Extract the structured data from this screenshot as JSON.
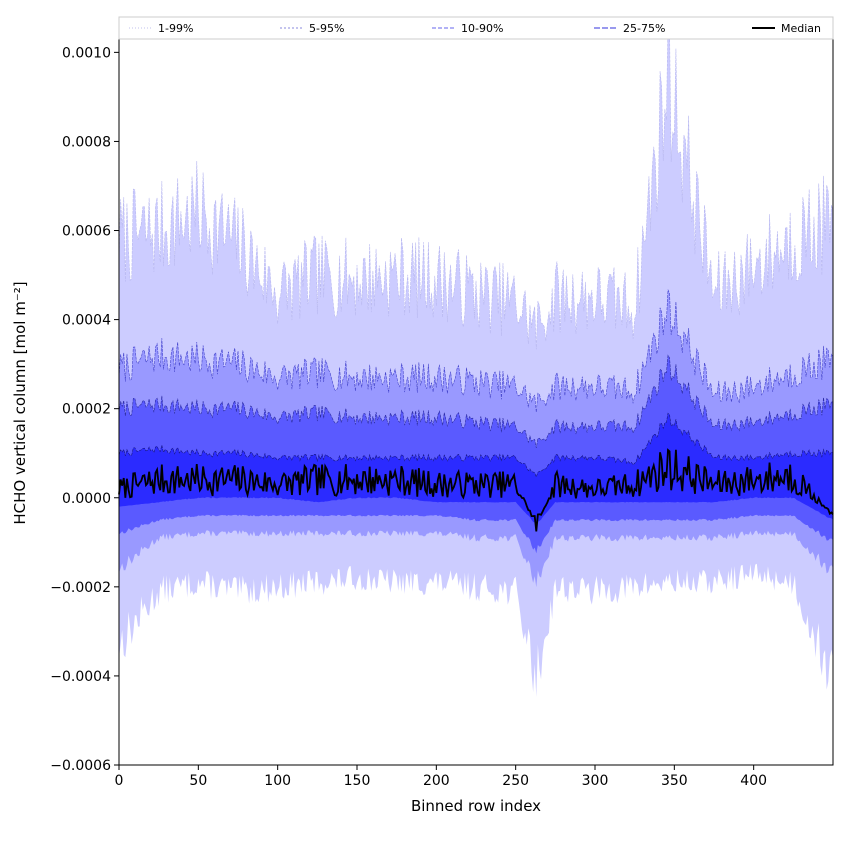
{
  "chart_data": {
    "type": "area",
    "title": "",
    "xlabel": "Binned row index",
    "ylabel": "HCHO vertical column [mol m⁻²]",
    "xlim": [
      0,
      450
    ],
    "ylim": [
      -0.0006,
      0.00103
    ],
    "x_ticks": [
      0,
      50,
      100,
      150,
      200,
      250,
      300,
      350,
      400
    ],
    "x_tick_labels": [
      "0",
      "50",
      "100",
      "150",
      "200",
      "250",
      "300",
      "350",
      "400"
    ],
    "y_ticks": [
      -0.0006,
      -0.0004,
      -0.0002,
      0,
      0.0002,
      0.0004,
      0.0006,
      0.0008,
      0.001
    ],
    "y_tick_labels": [
      "−0.0006",
      "−0.0004",
      "−0.0002",
      "0.0000",
      "0.0002",
      "0.0004",
      "0.0006",
      "0.0008",
      "0.0010"
    ],
    "grid": false,
    "legend_position": "top, above plot",
    "x": [
      0,
      25,
      50,
      75,
      100,
      125,
      150,
      175,
      200,
      225,
      250,
      263,
      275,
      300,
      325,
      346,
      375,
      400,
      425,
      450
    ],
    "bands": [
      {
        "name": "1-99%",
        "color": "#ccccff",
        "line_color": "#b8b8f0",
        "lower": [
          -0.00033,
          -0.00021,
          -0.00019,
          -0.00021,
          -0.0002,
          -0.00019,
          -0.00018,
          -0.00019,
          -0.00019,
          -0.0002,
          -0.00021,
          -0.00041,
          -0.0002,
          -0.00021,
          -0.0002,
          -0.00019,
          -0.00019,
          -0.00017,
          -0.00019,
          -0.00041
        ],
        "upper": [
          0.00058,
          0.0006,
          0.00064,
          0.00057,
          0.00046,
          0.0005,
          0.00049,
          0.0005,
          0.00049,
          0.00046,
          0.00044,
          0.00038,
          0.00045,
          0.00045,
          0.00043,
          0.00095,
          0.00046,
          0.00052,
          0.00058,
          0.00062
        ]
      },
      {
        "name": "5-95%",
        "color": "#9999ff",
        "line_color": "#4444cc",
        "lower": [
          -0.00016,
          -9e-05,
          -8e-05,
          -8e-05,
          -8e-05,
          -8e-05,
          -8e-05,
          -8e-05,
          -8e-05,
          -9e-05,
          -9e-05,
          -0.00019,
          -9e-05,
          -9e-05,
          -9e-05,
          -9e-05,
          -9e-05,
          -8e-05,
          -8e-05,
          -0.00017
        ],
        "upper": [
          0.00029,
          0.00032,
          0.00031,
          0.0003,
          0.00027,
          0.00028,
          0.00027,
          0.00027,
          0.00027,
          0.00026,
          0.00025,
          0.00021,
          0.00025,
          0.00025,
          0.00024,
          0.00043,
          0.00023,
          0.00025,
          0.00028,
          0.00031
        ]
      },
      {
        "name": "10-90%",
        "color": "#5a5aff",
        "line_color": "#2a2aa0",
        "lower": [
          -8e-05,
          -5e-05,
          -4e-05,
          -4e-05,
          -4e-05,
          -4e-05,
          -4e-05,
          -4e-05,
          -4e-05,
          -5e-05,
          -5e-05,
          -0.00012,
          -5e-05,
          -5e-05,
          -5e-05,
          -5e-05,
          -5e-05,
          -4e-05,
          -4e-05,
          -0.0001
        ],
        "upper": [
          0.0002,
          0.00021,
          0.0002,
          0.0002,
          0.00018,
          0.00019,
          0.00018,
          0.00018,
          0.00018,
          0.00017,
          0.00016,
          0.00012,
          0.00016,
          0.00016,
          0.00016,
          0.0003,
          0.00016,
          0.00017,
          0.00019,
          0.00021
        ]
      },
      {
        "name": "25-75%",
        "color": "#2b2bff",
        "line_color": "#151580",
        "lower": [
          -2e-05,
          -1e-05,
          0.0,
          0.0,
          0.0,
          -1e-05,
          0.0,
          0.0,
          -1e-05,
          -1e-05,
          -1e-05,
          -6e-05,
          -1e-05,
          -1e-05,
          -1e-05,
          -1e-05,
          -1e-05,
          0.0,
          0.0,
          -5e-05
        ],
        "upper": [
          0.0001,
          0.00011,
          0.0001,
          0.0001,
          9e-05,
          9e-05,
          9e-05,
          9e-05,
          9e-05,
          9e-05,
          9e-05,
          5e-05,
          9e-05,
          9e-05,
          8e-05,
          0.00018,
          9e-05,
          9e-05,
          0.0001,
          0.0001
        ]
      }
    ],
    "median": {
      "name": "Median",
      "color": "#000000",
      "values": [
        2e-05,
        4e-05,
        4e-05,
        4e-05,
        3e-05,
        4e-05,
        4e-05,
        4e-05,
        3e-05,
        3e-05,
        3e-05,
        -6e-05,
        3e-05,
        2e-05,
        3e-05,
        7e-05,
        3e-05,
        4e-05,
        5e-05,
        -4e-05
      ]
    },
    "legend": [
      {
        "label": "1-99%",
        "color": "#c0c0ee",
        "dash": "1,2"
      },
      {
        "label": "5-95%",
        "color": "#8888dd",
        "dash": "2,2"
      },
      {
        "label": "10-90%",
        "color": "#6666ee",
        "dash": "4,2"
      },
      {
        "label": "25-75%",
        "color": "#3333dd",
        "dash": "6,2"
      },
      {
        "label": "Median",
        "color": "#000000",
        "dash": ""
      }
    ]
  }
}
